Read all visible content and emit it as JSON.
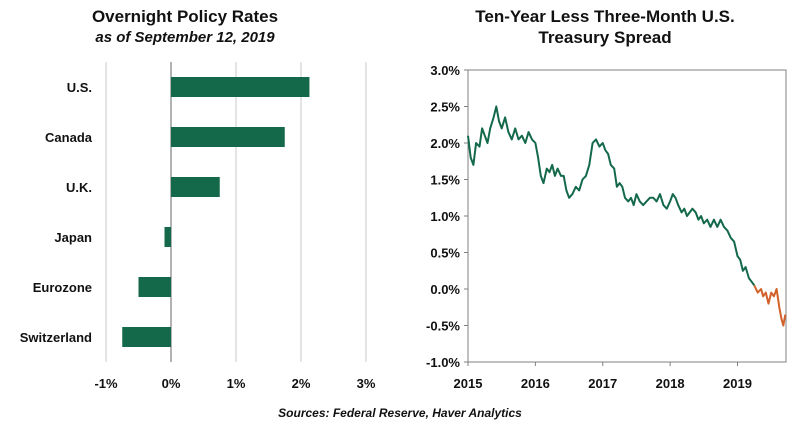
{
  "colors": {
    "bar": "#13694a",
    "line_green": "#13694a",
    "line_orange": "#d2612a",
    "grid": "#c8c8c8",
    "axis": "#808080"
  },
  "source": "Sources: Federal Reserve, Haver Analytics",
  "chart_data": [
    {
      "type": "bar",
      "orientation": "horizontal",
      "title": "Overnight Policy Rates",
      "subtitle": "as of September 12, 2019",
      "categories": [
        "U.S.",
        "Canada",
        "U.K.",
        "Japan",
        "Eurozone",
        "Switzerland"
      ],
      "values": [
        2.13,
        1.75,
        0.75,
        -0.1,
        -0.5,
        -0.75
      ],
      "x_ticks": [
        "-1%",
        "0%",
        "1%",
        "2%",
        "3%"
      ],
      "xlim": [
        -1,
        3
      ],
      "grid": "vertical"
    },
    {
      "type": "line",
      "title": "Ten-Year Less Three-Month U.S. Treasury Spread",
      "title_lines": [
        "Ten-Year Less Three-Month U.S.",
        "Treasury Spread"
      ],
      "x_ticks": [
        "2015",
        "2016",
        "2017",
        "2018",
        "2019"
      ],
      "y_ticks": [
        "3.0%",
        "2.5%",
        "2.0%",
        "1.5%",
        "1.0%",
        "0.5%",
        "0.0%",
        "-0.5%",
        "-1.0%"
      ],
      "xlim": [
        2015.0,
        2019.72
      ],
      "ylim": [
        -1.0,
        3.0
      ],
      "series": [
        {
          "color_key": "line_green",
          "x": [
            2015.0,
            2015.04,
            2015.08,
            2015.12,
            2015.17,
            2015.21,
            2015.25,
            2015.29,
            2015.33,
            2015.38,
            2015.42,
            2015.46,
            2015.5,
            2015.55,
            2015.6,
            2015.65,
            2015.7,
            2015.75,
            2015.8,
            2015.85,
            2015.9,
            2015.95,
            2016.0,
            2016.04,
            2016.08,
            2016.12,
            2016.17,
            2016.21,
            2016.25,
            2016.29,
            2016.33,
            2016.38,
            2016.42,
            2016.46,
            2016.5,
            2016.55,
            2016.6,
            2016.65,
            2016.7,
            2016.75,
            2016.8,
            2016.85,
            2016.9,
            2016.95,
            2017.0,
            2017.04,
            2017.08,
            2017.12,
            2017.17,
            2017.21,
            2017.25,
            2017.29,
            2017.33,
            2017.38,
            2017.42,
            2017.46,
            2017.5,
            2017.55,
            2017.6,
            2017.65,
            2017.7,
            2017.75,
            2017.8,
            2017.85,
            2017.9,
            2017.95,
            2018.0,
            2018.04,
            2018.08,
            2018.12,
            2018.17,
            2018.21,
            2018.25,
            2018.29,
            2018.33,
            2018.38,
            2018.42,
            2018.46,
            2018.5,
            2018.55,
            2018.6,
            2018.65,
            2018.7,
            2018.75,
            2018.8,
            2018.85,
            2018.9,
            2018.95,
            2019.0,
            2019.04,
            2019.08,
            2019.12,
            2019.17,
            2019.21,
            2019.25
          ],
          "y": [
            2.1,
            1.8,
            1.7,
            2.0,
            1.95,
            2.2,
            2.1,
            2.0,
            2.2,
            2.35,
            2.5,
            2.3,
            2.2,
            2.35,
            2.15,
            2.05,
            2.2,
            2.05,
            2.1,
            2.0,
            2.15,
            2.05,
            2.0,
            1.8,
            1.55,
            1.45,
            1.65,
            1.6,
            1.7,
            1.55,
            1.65,
            1.55,
            1.55,
            1.35,
            1.25,
            1.3,
            1.4,
            1.35,
            1.5,
            1.55,
            1.7,
            2.0,
            2.05,
            1.95,
            2.0,
            1.9,
            1.85,
            1.7,
            1.65,
            1.4,
            1.45,
            1.4,
            1.25,
            1.2,
            1.25,
            1.15,
            1.3,
            1.2,
            1.15,
            1.2,
            1.25,
            1.25,
            1.2,
            1.3,
            1.15,
            1.1,
            1.2,
            1.3,
            1.25,
            1.15,
            1.05,
            1.1,
            1.0,
            1.05,
            1.1,
            1.05,
            0.95,
            1.0,
            0.9,
            0.95,
            0.85,
            0.95,
            0.85,
            0.95,
            0.85,
            0.8,
            0.7,
            0.65,
            0.45,
            0.4,
            0.25,
            0.3,
            0.15,
            0.1,
            0.05
          ]
        },
        {
          "color_key": "line_orange",
          "x": [
            2019.25,
            2019.3,
            2019.35,
            2019.38,
            2019.42,
            2019.46,
            2019.5,
            2019.54,
            2019.58,
            2019.62,
            2019.65,
            2019.68,
            2019.71
          ],
          "y": [
            0.05,
            -0.05,
            0.0,
            -0.1,
            -0.05,
            -0.2,
            -0.05,
            -0.1,
            0.0,
            -0.25,
            -0.4,
            -0.5,
            -0.35
          ]
        }
      ]
    }
  ]
}
